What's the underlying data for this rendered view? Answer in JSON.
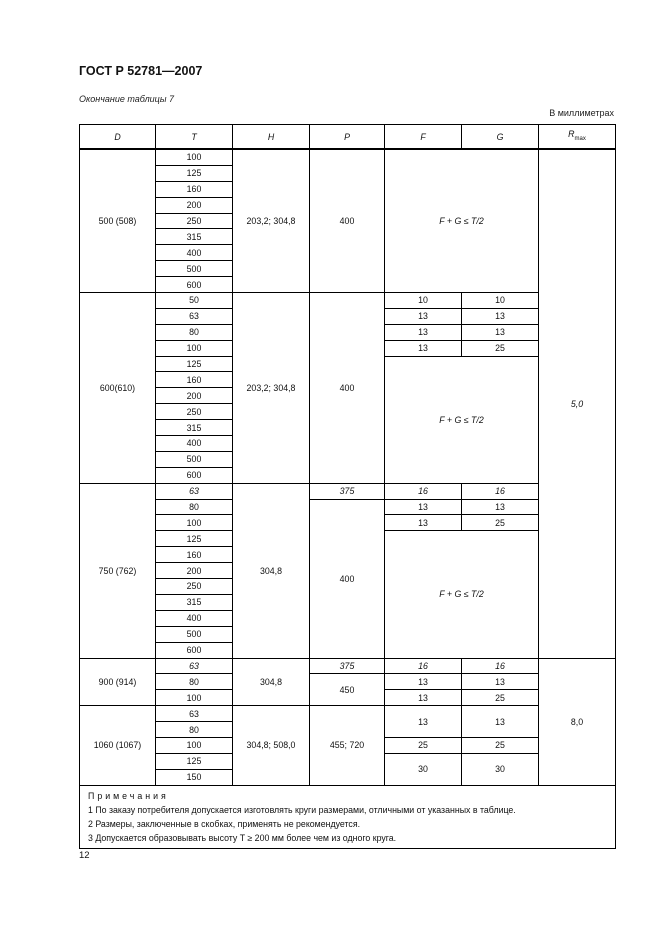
{
  "header": {
    "title": "ГОСТ Р 52781—2007"
  },
  "caption": "Окончание таблицы 7",
  "units": "В миллиметрах",
  "table": {
    "columns": [
      "D",
      "T",
      "H",
      "P",
      "F",
      "G",
      "R"
    ],
    "rmax_sub": "max",
    "rows": [
      [
        {
          "t": "500 (508)",
          "rs": 9
        },
        {
          "t": "100"
        },
        {
          "t": "203,2; 304,8",
          "rs": 9
        },
        {
          "t": "400",
          "rs": 9
        },
        {
          "t": "F + G ≤ T/2",
          "rs": 9,
          "cs": 2,
          "i": true
        },
        {
          "t": "5,0",
          "rs": 32,
          "i": true
        }
      ],
      [
        {
          "t": "125"
        }
      ],
      [
        {
          "t": "160"
        }
      ],
      [
        {
          "t": "200"
        }
      ],
      [
        {
          "t": "250"
        }
      ],
      [
        {
          "t": "315"
        }
      ],
      [
        {
          "t": "400"
        }
      ],
      [
        {
          "t": "500"
        }
      ],
      [
        {
          "t": "600"
        }
      ],
      [
        {
          "t": "600(610)",
          "rs": 12
        },
        {
          "t": "50"
        },
        {
          "t": "203,2; 304,8",
          "rs": 12
        },
        {
          "t": "400",
          "rs": 12
        },
        {
          "t": "10"
        },
        {
          "t": "10"
        }
      ],
      [
        {
          "t": "63"
        },
        {
          "t": "13"
        },
        {
          "t": "13"
        }
      ],
      [
        {
          "t": "80"
        },
        {
          "t": "13"
        },
        {
          "t": "13"
        }
      ],
      [
        {
          "t": "100"
        },
        {
          "t": "13"
        },
        {
          "t": "25"
        }
      ],
      [
        {
          "t": "125"
        },
        {
          "t": "F + G ≤ T/2",
          "rs": 8,
          "cs": 2,
          "i": true
        }
      ],
      [
        {
          "t": "160"
        }
      ],
      [
        {
          "t": "200"
        }
      ],
      [
        {
          "t": "250"
        }
      ],
      [
        {
          "t": "315"
        }
      ],
      [
        {
          "t": "400"
        }
      ],
      [
        {
          "t": "500"
        }
      ],
      [
        {
          "t": "600"
        }
      ],
      [
        {
          "t": "750 (762)",
          "rs": 11
        },
        {
          "t": "63",
          "i": true
        },
        {
          "t": "304,8",
          "rs": 11
        },
        {
          "t": "375",
          "i": true
        },
        {
          "t": "16",
          "i": true
        },
        {
          "t": "16",
          "i": true
        }
      ],
      [
        {
          "t": "80"
        },
        {
          "t": "400",
          "rs": 10
        },
        {
          "t": "13"
        },
        {
          "t": "13"
        }
      ],
      [
        {
          "t": "100"
        },
        {
          "t": "13"
        },
        {
          "t": "25"
        }
      ],
      [
        {
          "t": "125"
        },
        {
          "t": "F + G ≤ T/2",
          "rs": 8,
          "cs": 2,
          "i": true
        }
      ],
      [
        {
          "t": "160"
        }
      ],
      [
        {
          "t": "200"
        }
      ],
      [
        {
          "t": "250"
        }
      ],
      [
        {
          "t": "315"
        }
      ],
      [
        {
          "t": "400"
        }
      ],
      [
        {
          "t": "500"
        }
      ],
      [
        {
          "t": "600"
        }
      ],
      [
        {
          "t": "900 (914)",
          "rs": 3
        },
        {
          "t": "63",
          "i": true
        },
        {
          "t": "304,8",
          "rs": 3
        },
        {
          "t": "375",
          "i": true
        },
        {
          "t": "16",
          "i": true
        },
        {
          "t": "16",
          "i": true
        },
        {
          "t": "8,0",
          "rs": 8
        }
      ],
      [
        {
          "t": "80"
        },
        {
          "t": "450",
          "rs": 2
        },
        {
          "t": "13"
        },
        {
          "t": "13"
        }
      ],
      [
        {
          "t": "100"
        },
        {
          "t": "13"
        },
        {
          "t": "25"
        }
      ],
      [
        {
          "t": "1060 (1067)",
          "rs": 5
        },
        {
          "t": "63"
        },
        {
          "t": "304,8; 508,0",
          "rs": 5
        },
        {
          "t": "455; 720",
          "rs": 5
        },
        {
          "t": "13",
          "rs": 2
        },
        {
          "t": "13",
          "rs": 2
        }
      ],
      [
        {
          "t": "80"
        }
      ],
      [
        {
          "t": "100"
        },
        {
          "t": "25"
        },
        {
          "t": "25"
        }
      ],
      [
        {
          "t": "125"
        },
        {
          "t": "30",
          "rs": 2
        },
        {
          "t": "30",
          "rs": 2
        }
      ],
      [
        {
          "t": "150"
        }
      ]
    ]
  },
  "notes": {
    "title": "Примечания",
    "items": [
      "1  По заказу потребителя допускается изготовлять круги размерами, отличными от указанных в таблице.",
      "2  Размеры, заключенные в скобках, применять не рекомендуется.",
      "3  Допускается образовывать высоту T ≥ 200 мм более чем из одного круга."
    ]
  },
  "page_number": "12"
}
